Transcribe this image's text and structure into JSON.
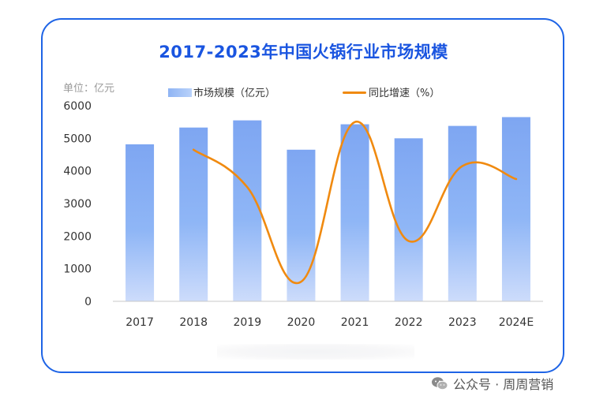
{
  "chart_data": {
    "type": "bar",
    "title": "2017-2023年中国火锅行业市场规模",
    "unit_label": "单位：亿元",
    "categories": [
      "2017",
      "2018",
      "2019",
      "2020",
      "2021",
      "2022",
      "2023",
      "2024E"
    ],
    "ylim": [
      0,
      6000
    ],
    "yticks": [
      "0",
      "1000",
      "2000",
      "3000",
      "4000",
      "5000",
      "6000"
    ],
    "grid": false,
    "legend_position": "top",
    "series": [
      {
        "name": "市场规模（亿元）",
        "type": "bar",
        "values": [
          4815,
          5330,
          5550,
          4650,
          5430,
          5000,
          5380,
          5650
        ]
      },
      {
        "name": "同比增速（%）",
        "type": "line",
        "values": [
          null,
          4650,
          3500,
          600,
          5500,
          1850,
          4150,
          3750
        ]
      }
    ],
    "colors": {
      "bar_top": "#7ea6f2",
      "bar_bottom": "#c8dafb",
      "line": "#f08a10",
      "title": "#1a55e0",
      "frame": "#1e64e6"
    }
  },
  "watermark": {
    "icon": "wechat-icon",
    "text": "公众号 · 周周营销"
  }
}
